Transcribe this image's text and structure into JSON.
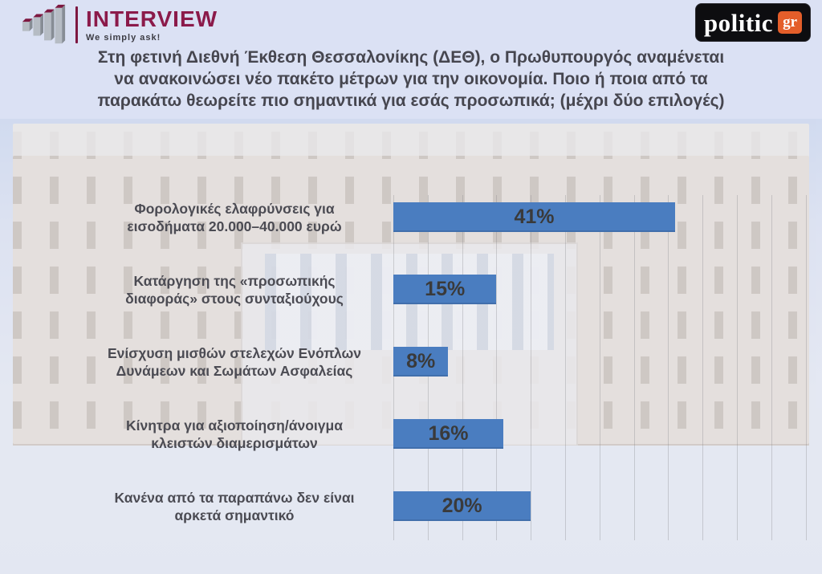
{
  "header": {
    "interview_logo": {
      "name": "INTERVIEW",
      "tagline": "We simply ask!",
      "brand_color": "#8b1a4a"
    },
    "politic_logo": {
      "name": "politic",
      "suffix": "gr",
      "bg_color": "#0d0d10",
      "accent_color": "#e45e2a"
    }
  },
  "title": {
    "lines": [
      "Στη φετινή Διεθνή Έκθεση Θεσσαλονίκης (ΔΕΘ), ο Πρωθυπουργός αναμένεται",
      "να ανακοινώσει νέο πακέτο μέτρων για την οικονομία. Ποιο ή ποια από τα",
      "παρακάτω θεωρείτε πιο σημαντικά για εσάς προσωπικά; (μέχρι δύο επιλογές)"
    ]
  },
  "background": {
    "description": "faded photograph of the Hellenic Parliament building, Athens"
  },
  "chart_data": {
    "type": "bar",
    "orientation": "horizontal",
    "title": "Στη φετινή Διεθνή Έκθεση Θεσσαλονίκης (ΔΕΘ), ο Πρωθυπουργός αναμένεται να ανακοινώσει νέο πακέτο μέτρων για την οικονομία. Ποιο ή ποια από τα παρακάτω θεωρείτε πιο σημαντικά για εσάς προσωπικά; (μέχρι δύο επιλογές)",
    "categories": [
      "Φορολογικές ελαφρύνσεις για εισοδήματα 20.000–40.000 ευρώ",
      "Κατάργηση της «προσωπικής διαφοράς» στους συνταξιούχους",
      "Ενίσχυση μισθών στελεχών Ενόπλων Δυνάμεων και Σωμάτων Ασφαλείας",
      "Κίνητρα για αξιοποίηση/άνοιγμα κλειστών διαμερισμάτων",
      "Κανένα από τα παραπάνω δεν είναι αρκετά σημαντικό"
    ],
    "category_lines": [
      [
        "Φορολογικές ελαφρύνσεις για",
        "εισοδήματα 20.000–40.000 ευρώ"
      ],
      [
        "Κατάργηση της «προσωπικής",
        "διαφοράς» στους συνταξιούχους"
      ],
      [
        "Ενίσχυση μισθών στελεχών Ενόπλων",
        "Δυνάμεων και Σωμάτων Ασφαλείας"
      ],
      [
        "Κίνητρα για αξιοποίηση/άνοιγμα",
        "κλειστών διαμερισμάτων"
      ],
      [
        "Κανένα από τα παραπάνω δεν είναι",
        "αρκετά σημαντικό"
      ]
    ],
    "values": [
      41,
      15,
      8,
      16,
      20
    ],
    "value_labels": [
      "41%",
      "15%",
      "8%",
      "16%",
      "20%"
    ],
    "xlim": [
      0,
      60
    ],
    "gridline_step": 5,
    "grid": true,
    "legend": false,
    "bar_color": "#4a7dc0",
    "value_label_position": "inside-center"
  }
}
